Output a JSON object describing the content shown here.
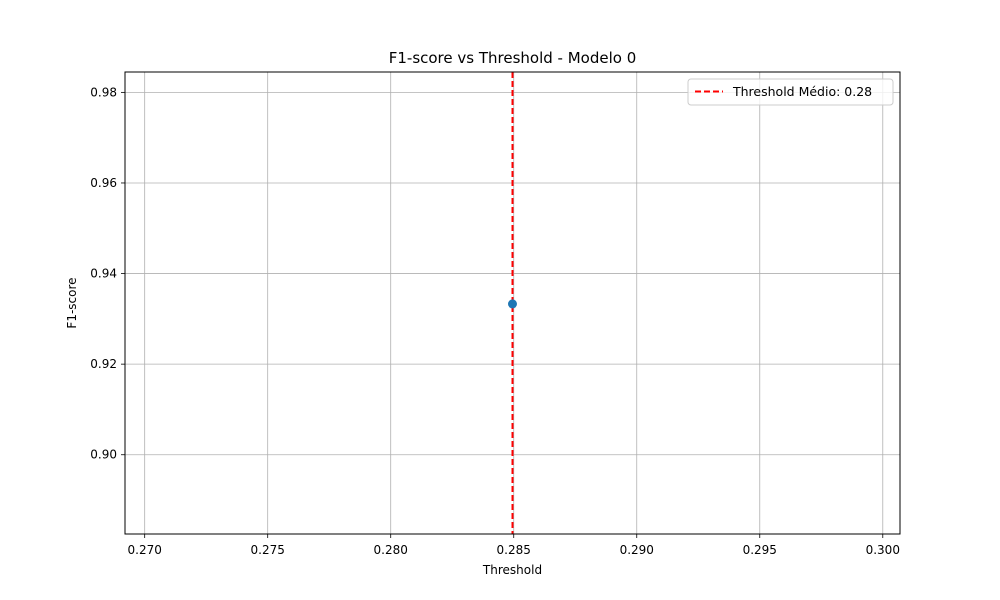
{
  "chart_data": {
    "type": "scatter",
    "title": "F1-score vs Threshold - Modelo 0",
    "xlabel": "Threshold",
    "ylabel": "F1-score",
    "xlim": [
      0.2692,
      0.3007
    ],
    "ylim": [
      0.8825,
      0.9845
    ],
    "xticks": [
      "0.270",
      "0.275",
      "0.280",
      "0.285",
      "0.290",
      "0.295",
      "0.300"
    ],
    "yticks": [
      "0.90",
      "0.92",
      "0.94",
      "0.96",
      "0.98"
    ],
    "grid": true,
    "legend_position": "top-right",
    "series": [
      {
        "marker_color": "#1f77b4",
        "points": [
          {
            "x": 0.28495,
            "y": 0.9333
          }
        ]
      }
    ],
    "vlines": [
      {
        "name": "Threshold Médio: 0.28",
        "x": 0.28495,
        "color": "#ff0000",
        "style": "dashed"
      }
    ]
  }
}
